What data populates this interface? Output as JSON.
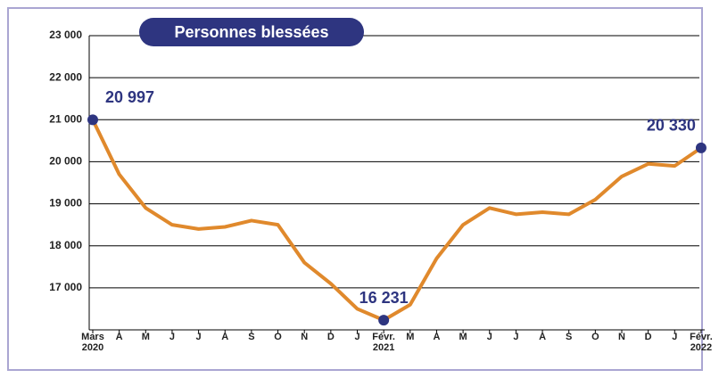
{
  "chart_data": {
    "type": "line",
    "title": "Personnes blessées",
    "categories": [
      "Mars\n2020",
      "A",
      "M",
      "J",
      "J",
      "A",
      "S",
      "O",
      "N",
      "D",
      "J",
      "Févr.\n2021",
      "M",
      "A",
      "M",
      "J",
      "J",
      "A",
      "S",
      "O",
      "N",
      "D",
      "J",
      "Févr.\n2022"
    ],
    "series": [
      {
        "color": "#e0892c",
        "values": [
          20997,
          19700,
          18900,
          18500,
          18400,
          18450,
          18600,
          18500,
          17600,
          17100,
          16500,
          16231,
          16600,
          17700,
          18500,
          18900,
          18750,
          18800,
          18750,
          19100,
          19650,
          19950,
          19900,
          20330
        ],
        "value_labels": [
          "20 997",
          null,
          null,
          null,
          null,
          null,
          null,
          null,
          null,
          null,
          null,
          "16 231",
          null,
          null,
          null,
          null,
          null,
          null,
          null,
          null,
          null,
          null,
          null,
          "20 330"
        ]
      }
    ],
    "ylim": [
      16000,
      23000
    ],
    "yticks": [
      {
        "value": 17000,
        "label": "17 000"
      },
      {
        "value": 18000,
        "label": "18 000"
      },
      {
        "value": 19000,
        "label": "19 000"
      },
      {
        "value": 20000,
        "label": "20 000"
      },
      {
        "value": 21000,
        "label": "21 000"
      },
      {
        "value": 22000,
        "label": "22 000"
      },
      {
        "value": 23000,
        "label": "23 000"
      }
    ],
    "grid": true,
    "marker_color": "#2e3580"
  }
}
